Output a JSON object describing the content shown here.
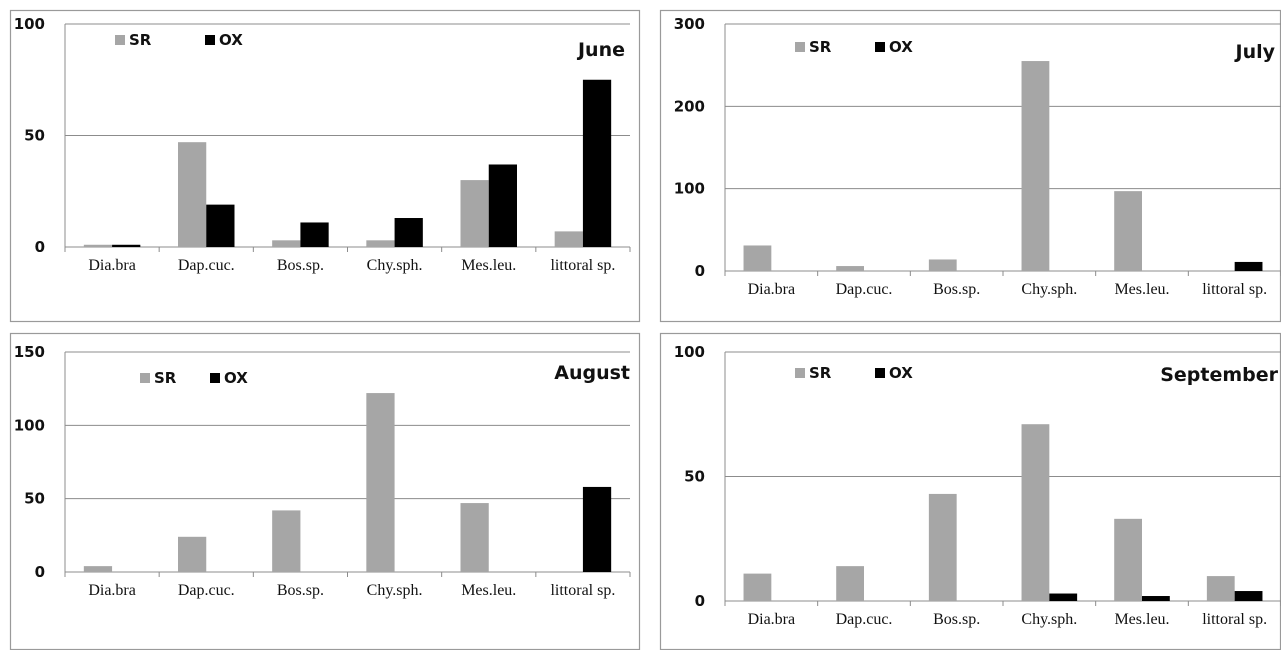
{
  "colors": {
    "SR": "#a6a6a6",
    "OX": "#000000"
  },
  "chart_data": [
    {
      "type": "bar",
      "title": "June",
      "categories": [
        "Dia.bra",
        "Dap.cuc.",
        "Bos.sp.",
        "Chy.sph.",
        "Mes.leu.",
        "littoral sp."
      ],
      "series": [
        {
          "name": "SR",
          "values": [
            1,
            47,
            3,
            3,
            30,
            7
          ]
        },
        {
          "name": "OX",
          "values": [
            1,
            19,
            11,
            13,
            37,
            75
          ]
        }
      ],
      "ylim": [
        0,
        100
      ],
      "yticks": [
        0,
        50,
        100
      ],
      "grid": true,
      "legend": "top-left"
    },
    {
      "type": "bar",
      "title": "July",
      "categories": [
        "Dia.bra",
        "Dap.cuc.",
        "Bos.sp.",
        "Chy.sph.",
        "Mes.leu.",
        "littoral sp."
      ],
      "series": [
        {
          "name": "SR",
          "values": [
            31,
            6,
            14,
            255,
            97,
            0
          ]
        },
        {
          "name": "OX",
          "values": [
            0,
            0,
            0,
            0,
            0,
            11
          ]
        }
      ],
      "ylim": [
        0,
        300
      ],
      "yticks": [
        0,
        100,
        200,
        300
      ],
      "grid": true,
      "legend": "top-left"
    },
    {
      "type": "bar",
      "title": "August",
      "categories": [
        "Dia.bra",
        "Dap.cuc.",
        "Bos.sp.",
        "Chy.sph.",
        "Mes.leu.",
        "littoral sp."
      ],
      "series": [
        {
          "name": "SR",
          "values": [
            4,
            24,
            42,
            122,
            47,
            0
          ]
        },
        {
          "name": "OX",
          "values": [
            0,
            0,
            0,
            0,
            0,
            58
          ]
        }
      ],
      "ylim": [
        0,
        150
      ],
      "yticks": [
        0,
        50,
        100,
        150
      ],
      "grid": true,
      "legend": "top-left"
    },
    {
      "type": "bar",
      "title": "September",
      "categories": [
        "Dia.bra",
        "Dap.cuc.",
        "Bos.sp.",
        "Chy.sph.",
        "Mes.leu.",
        "littoral sp."
      ],
      "series": [
        {
          "name": "SR",
          "values": [
            11,
            14,
            43,
            71,
            33,
            10
          ]
        },
        {
          "name": "OX",
          "values": [
            0,
            0,
            0,
            3,
            2,
            4
          ]
        }
      ],
      "ylim": [
        0,
        100
      ],
      "yticks": [
        0,
        50,
        100
      ],
      "grid": true,
      "legend": "top-left"
    }
  ]
}
